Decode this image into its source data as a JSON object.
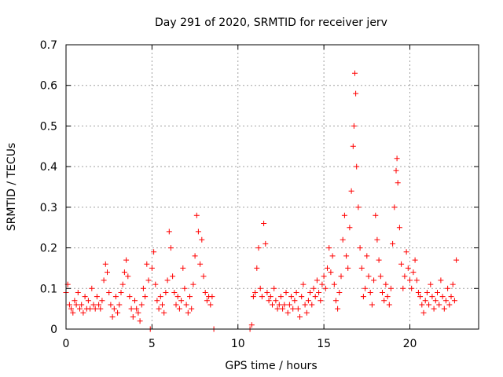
{
  "chart_data": {
    "type": "scatter",
    "title": "Day 291 of 2020, SRMTID for receiver jerv",
    "xlabel": "GPS time / hours",
    "ylabel": "SRMTID / TECUs",
    "xlim": [
      0,
      24
    ],
    "ylim": [
      0,
      0.7
    ],
    "x_ticks": [
      0,
      5,
      10,
      15,
      20
    ],
    "x_tick_labels": [
      "0",
      "5",
      "10",
      "15",
      "20"
    ],
    "y_ticks": [
      0,
      0.1,
      0.2,
      0.3,
      0.4,
      0.5,
      0.6,
      0.7
    ],
    "y_tick_labels": [
      "0",
      "0.1",
      "0.2",
      "0.3",
      "0.4",
      "0.5",
      "0.6",
      "0.7"
    ],
    "grid": true,
    "marker": "+",
    "marker_color": "#ff0000",
    "series": [
      {
        "name": "SRMTID",
        "points": [
          [
            0.0,
            0.09
          ],
          [
            0.1,
            0.11
          ],
          [
            0.2,
            0.06
          ],
          [
            0.3,
            0.05
          ],
          [
            0.4,
            0.04
          ],
          [
            0.5,
            0.07
          ],
          [
            0.6,
            0.06
          ],
          [
            0.7,
            0.09
          ],
          [
            0.8,
            0.05
          ],
          [
            0.9,
            0.06
          ],
          [
            1.0,
            0.04
          ],
          [
            1.1,
            0.08
          ],
          [
            1.2,
            0.05
          ],
          [
            1.3,
            0.07
          ],
          [
            1.4,
            0.05
          ],
          [
            1.5,
            0.1
          ],
          [
            1.6,
            0.06
          ],
          [
            1.7,
            0.05
          ],
          [
            1.8,
            0.08
          ],
          [
            1.9,
            0.06
          ],
          [
            2.0,
            0.05
          ],
          [
            2.1,
            0.07
          ],
          [
            2.2,
            0.12
          ],
          [
            2.3,
            0.16
          ],
          [
            2.4,
            0.14
          ],
          [
            2.5,
            0.09
          ],
          [
            2.6,
            0.06
          ],
          [
            2.7,
            0.03
          ],
          [
            2.8,
            0.05
          ],
          [
            2.9,
            0.08
          ],
          [
            3.0,
            0.04
          ],
          [
            3.1,
            0.06
          ],
          [
            3.2,
            0.09
          ],
          [
            3.3,
            0.11
          ],
          [
            3.4,
            0.14
          ],
          [
            3.5,
            0.17
          ],
          [
            3.6,
            0.13
          ],
          [
            3.7,
            0.08
          ],
          [
            3.8,
            0.05
          ],
          [
            3.9,
            0.03
          ],
          [
            4.0,
            0.07
          ],
          [
            4.1,
            0.05
          ],
          [
            4.2,
            0.04
          ],
          [
            4.3,
            0.02
          ],
          [
            4.4,
            0.06
          ],
          [
            4.5,
            0.1
          ],
          [
            4.6,
            0.08
          ],
          [
            4.7,
            0.16
          ],
          [
            4.8,
            0.12
          ],
          [
            4.9,
            0.0
          ],
          [
            5.0,
            0.15
          ],
          [
            5.1,
            0.19
          ],
          [
            5.2,
            0.11
          ],
          [
            5.3,
            0.07
          ],
          [
            5.4,
            0.05
          ],
          [
            5.5,
            0.08
          ],
          [
            5.6,
            0.06
          ],
          [
            5.7,
            0.04
          ],
          [
            5.8,
            0.09
          ],
          [
            5.9,
            0.12
          ],
          [
            6.0,
            0.24
          ],
          [
            6.1,
            0.2
          ],
          [
            6.2,
            0.13
          ],
          [
            6.3,
            0.09
          ],
          [
            6.4,
            0.06
          ],
          [
            6.5,
            0.08
          ],
          [
            6.6,
            0.05
          ],
          [
            6.7,
            0.07
          ],
          [
            6.8,
            0.15
          ],
          [
            6.9,
            0.1
          ],
          [
            7.0,
            0.06
          ],
          [
            7.1,
            0.04
          ],
          [
            7.2,
            0.08
          ],
          [
            7.3,
            0.05
          ],
          [
            7.4,
            0.11
          ],
          [
            7.5,
            0.18
          ],
          [
            7.6,
            0.28
          ],
          [
            7.7,
            0.24
          ],
          [
            7.8,
            0.16
          ],
          [
            7.9,
            0.22
          ],
          [
            8.0,
            0.13
          ],
          [
            8.1,
            0.09
          ],
          [
            8.2,
            0.07
          ],
          [
            8.3,
            0.08
          ],
          [
            8.4,
            0.06
          ],
          [
            8.5,
            0.08
          ],
          [
            8.6,
            0.0
          ],
          [
            10.7,
            0.0
          ],
          [
            10.8,
            0.01
          ],
          [
            10.9,
            0.08
          ],
          [
            11.0,
            0.09
          ],
          [
            11.1,
            0.15
          ],
          [
            11.2,
            0.2
          ],
          [
            11.3,
            0.1
          ],
          [
            11.4,
            0.08
          ],
          [
            11.5,
            0.26
          ],
          [
            11.6,
            0.21
          ],
          [
            11.7,
            0.09
          ],
          [
            11.8,
            0.07
          ],
          [
            11.9,
            0.08
          ],
          [
            12.0,
            0.06
          ],
          [
            12.1,
            0.1
          ],
          [
            12.2,
            0.07
          ],
          [
            12.3,
            0.05
          ],
          [
            12.4,
            0.06
          ],
          [
            12.5,
            0.08
          ],
          [
            12.6,
            0.05
          ],
          [
            12.7,
            0.06
          ],
          [
            12.8,
            0.09
          ],
          [
            12.9,
            0.04
          ],
          [
            13.0,
            0.06
          ],
          [
            13.1,
            0.08
          ],
          [
            13.2,
            0.05
          ],
          [
            13.3,
            0.07
          ],
          [
            13.4,
            0.09
          ],
          [
            13.5,
            0.05
          ],
          [
            13.6,
            0.03
          ],
          [
            13.7,
            0.08
          ],
          [
            13.8,
            0.11
          ],
          [
            13.9,
            0.06
          ],
          [
            14.0,
            0.04
          ],
          [
            14.1,
            0.07
          ],
          [
            14.2,
            0.09
          ],
          [
            14.3,
            0.06
          ],
          [
            14.4,
            0.1
          ],
          [
            14.5,
            0.08
          ],
          [
            14.6,
            0.12
          ],
          [
            14.7,
            0.09
          ],
          [
            14.8,
            0.07
          ],
          [
            14.9,
            0.11
          ],
          [
            15.0,
            0.13
          ],
          [
            15.1,
            0.1
          ],
          [
            15.2,
            0.15
          ],
          [
            15.3,
            0.2
          ],
          [
            15.4,
            0.14
          ],
          [
            15.5,
            0.18
          ],
          [
            15.6,
            0.11
          ],
          [
            15.7,
            0.07
          ],
          [
            15.8,
            0.05
          ],
          [
            15.9,
            0.09
          ],
          [
            16.0,
            0.13
          ],
          [
            16.1,
            0.22
          ],
          [
            16.2,
            0.28
          ],
          [
            16.3,
            0.18
          ],
          [
            16.4,
            0.15
          ],
          [
            16.5,
            0.25
          ],
          [
            16.6,
            0.34
          ],
          [
            16.7,
            0.45
          ],
          [
            16.75,
            0.5
          ],
          [
            16.8,
            0.63
          ],
          [
            16.85,
            0.58
          ],
          [
            16.9,
            0.4
          ],
          [
            17.0,
            0.3
          ],
          [
            17.1,
            0.2
          ],
          [
            17.2,
            0.15
          ],
          [
            17.3,
            0.08
          ],
          [
            17.4,
            0.1
          ],
          [
            17.5,
            0.18
          ],
          [
            17.6,
            0.13
          ],
          [
            17.7,
            0.09
          ],
          [
            17.8,
            0.06
          ],
          [
            17.9,
            0.12
          ],
          [
            18.0,
            0.28
          ],
          [
            18.1,
            0.22
          ],
          [
            18.2,
            0.17
          ],
          [
            18.3,
            0.13
          ],
          [
            18.4,
            0.09
          ],
          [
            18.5,
            0.07
          ],
          [
            18.6,
            0.11
          ],
          [
            18.7,
            0.08
          ],
          [
            18.8,
            0.06
          ],
          [
            18.9,
            0.1
          ],
          [
            19.0,
            0.21
          ],
          [
            19.1,
            0.3
          ],
          [
            19.2,
            0.39
          ],
          [
            19.25,
            0.42
          ],
          [
            19.3,
            0.36
          ],
          [
            19.4,
            0.25
          ],
          [
            19.5,
            0.16
          ],
          [
            19.6,
            0.1
          ],
          [
            19.7,
            0.13
          ],
          [
            19.8,
            0.19
          ],
          [
            19.9,
            0.15
          ],
          [
            20.0,
            0.12
          ],
          [
            20.1,
            0.1
          ],
          [
            20.2,
            0.14
          ],
          [
            20.3,
            0.17
          ],
          [
            20.4,
            0.12
          ],
          [
            20.5,
            0.09
          ],
          [
            20.6,
            0.08
          ],
          [
            20.7,
            0.06
          ],
          [
            20.8,
            0.04
          ],
          [
            20.9,
            0.07
          ],
          [
            21.0,
            0.09
          ],
          [
            21.1,
            0.06
          ],
          [
            21.2,
            0.11
          ],
          [
            21.3,
            0.08
          ],
          [
            21.4,
            0.05
          ],
          [
            21.5,
            0.07
          ],
          [
            21.6,
            0.09
          ],
          [
            21.7,
            0.06
          ],
          [
            21.8,
            0.12
          ],
          [
            21.9,
            0.08
          ],
          [
            22.0,
            0.05
          ],
          [
            22.1,
            0.07
          ],
          [
            22.2,
            0.1
          ],
          [
            22.3,
            0.06
          ],
          [
            22.4,
            0.08
          ],
          [
            22.5,
            0.11
          ],
          [
            22.6,
            0.07
          ],
          [
            22.7,
            0.17
          ]
        ]
      }
    ]
  }
}
